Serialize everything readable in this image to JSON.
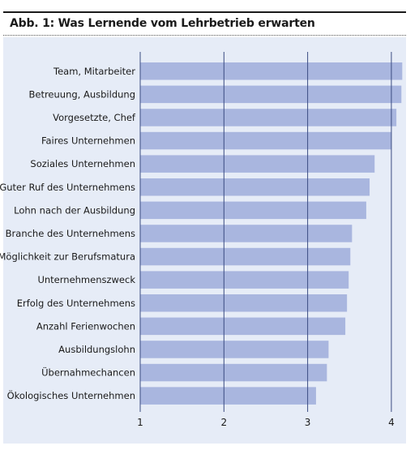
{
  "title": "Abb. 1: Was Lernende vom Lehrbetrieb erwarten",
  "colors": {
    "bar": "#a9b6df",
    "panel": "#e6ecf7",
    "gridline": "#3b4c82",
    "text": "#1a1a1a"
  },
  "chart_data": {
    "type": "bar",
    "orientation": "horizontal",
    "title": "Abb. 1: Was Lernende vom Lehrbetrieb erwarten",
    "xlabel": "",
    "ylabel": "",
    "xlim": [
      1,
      4.15
    ],
    "xticks": [
      "1",
      "2",
      "3",
      "4"
    ],
    "grid": true,
    "categories": [
      "Team, Mitarbeiter",
      "Betreuung, Ausbildung",
      "Vorgesetzte, Chef",
      "Faires Unternehmen",
      "Soziales Unternehmen",
      "Guter Ruf des Unternehmens",
      "Lohn nach der Ausbildung",
      "Branche des Unternehmens",
      "Möglichkeit zur Berufsmatura",
      "Unternehmenszweck",
      "Erfolg des Unternehmens",
      "Anzahl Ferienwochen",
      "Ausbildungslohn",
      "Übernahmechancen",
      "Ökologisches Unternehmen"
    ],
    "values": [
      4.13,
      4.12,
      4.06,
      4.0,
      3.8,
      3.74,
      3.7,
      3.53,
      3.51,
      3.49,
      3.47,
      3.45,
      3.25,
      3.23,
      3.1
    ]
  }
}
